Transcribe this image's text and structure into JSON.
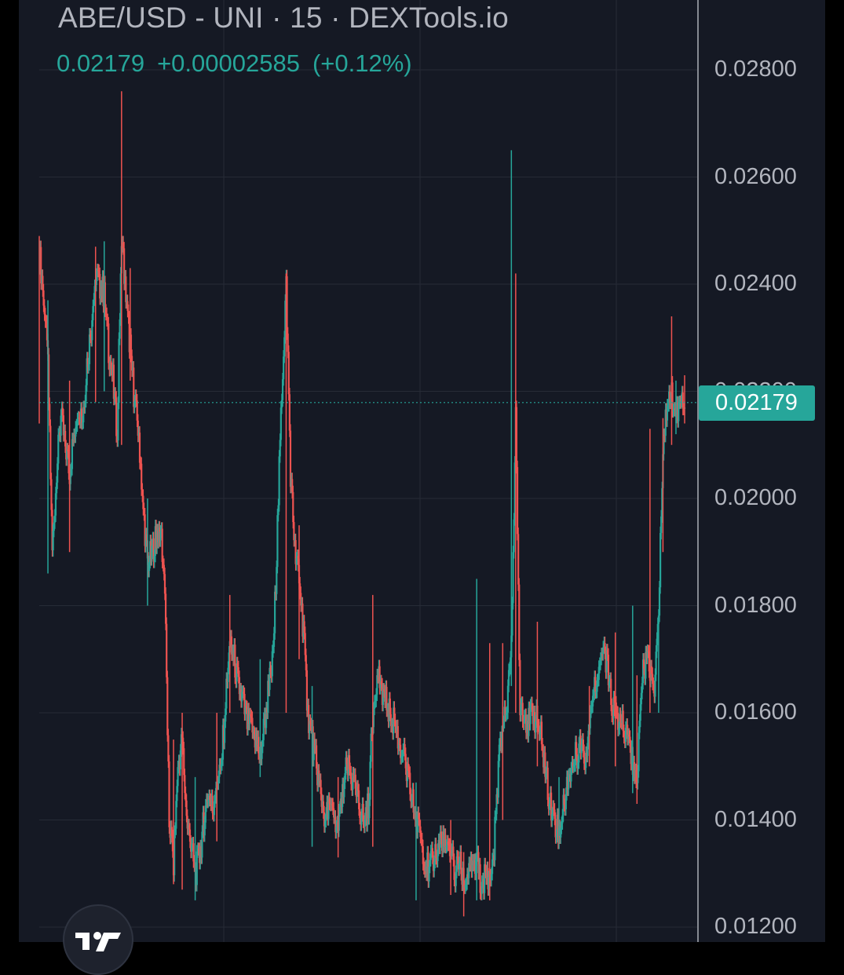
{
  "header": {
    "title": "ABE/USD - UNI · 15 · DEXTools.io",
    "last_price": "0.02179",
    "change": "+0.00002585",
    "change_pct": "(+0.12%)"
  },
  "price_tag": "0.02179",
  "colors": {
    "background": "#151924",
    "up": "#26a69a",
    "down": "#ef5350",
    "grid": "#262b36",
    "axis_text": "#b2b5be"
  },
  "logo_icon": "tradingview-logo-icon",
  "chart_data": {
    "type": "candlestick",
    "title": "ABE/USD - UNI · 15 · DEXTools.io",
    "timeframe": "15",
    "ylim": [
      0.0117,
      0.0288
    ],
    "y_ticks": [
      "0.02800",
      "0.02600",
      "0.02400",
      "0.02200",
      "0.02000",
      "0.01800",
      "0.01600",
      "0.01400",
      "0.01200"
    ],
    "y_tick_values": [
      0.028,
      0.026,
      0.024,
      0.022,
      0.02,
      0.018,
      0.016,
      0.014,
      0.012
    ],
    "current_price": 0.02179,
    "grid": true,
    "path": [
      [
        0,
        0.0246
      ],
      [
        0.5,
        0.0238
      ],
      [
        1,
        0.0225
      ],
      [
        1.5,
        0.019
      ],
      [
        2,
        0.0205
      ],
      [
        2.5,
        0.0215
      ],
      [
        3,
        0.021
      ],
      [
        3.5,
        0.0205
      ],
      [
        4,
        0.0212
      ],
      [
        4.5,
        0.0218
      ],
      [
        5,
        0.0215
      ],
      [
        5.5,
        0.0225
      ],
      [
        6,
        0.0232
      ],
      [
        6.5,
        0.0242
      ],
      [
        7,
        0.024
      ],
      [
        7.5,
        0.0238
      ],
      [
        8,
        0.0228
      ],
      [
        8.5,
        0.0222
      ],
      [
        9,
        0.0212
      ],
      [
        9.5,
        0.025
      ],
      [
        10,
        0.0237
      ],
      [
        10.5,
        0.0228
      ],
      [
        11,
        0.0218
      ],
      [
        11.5,
        0.0212
      ],
      [
        12,
        0.0198
      ],
      [
        12.5,
        0.0188
      ],
      [
        13,
        0.019
      ],
      [
        13.5,
        0.0193
      ],
      [
        14,
        0.0195
      ],
      [
        14.5,
        0.0183
      ],
      [
        15,
        0.014
      ],
      [
        15.5,
        0.0132
      ],
      [
        16,
        0.015
      ],
      [
        16.5,
        0.0155
      ],
      [
        17,
        0.014
      ],
      [
        17.5,
        0.0135
      ],
      [
        18,
        0.013
      ],
      [
        18.5,
        0.0133
      ],
      [
        19,
        0.014
      ],
      [
        19.5,
        0.0145
      ],
      [
        20,
        0.0142
      ],
      [
        20.5,
        0.0148
      ],
      [
        21,
        0.015
      ],
      [
        21.5,
        0.0162
      ],
      [
        22,
        0.0172
      ],
      [
        22.5,
        0.017
      ],
      [
        23,
        0.0165
      ],
      [
        23.5,
        0.0162
      ],
      [
        24,
        0.0158
      ],
      [
        24.5,
        0.0157
      ],
      [
        25,
        0.0155
      ],
      [
        25.5,
        0.0152
      ],
      [
        26,
        0.0158
      ],
      [
        26.5,
        0.0165
      ],
      [
        27,
        0.017
      ],
      [
        27.5,
        0.0195
      ],
      [
        28,
        0.022
      ],
      [
        28.5,
        0.024
      ],
      [
        29,
        0.0205
      ],
      [
        29.5,
        0.019
      ],
      [
        30,
        0.0185
      ],
      [
        30.5,
        0.0175
      ],
      [
        31,
        0.016
      ],
      [
        31.5,
        0.0155
      ],
      [
        32,
        0.015
      ],
      [
        32.5,
        0.0145
      ],
      [
        33,
        0.014
      ],
      [
        33.5,
        0.0142
      ],
      [
        34,
        0.014
      ],
      [
        34.5,
        0.0138
      ],
      [
        35,
        0.0145
      ],
      [
        35.5,
        0.015
      ],
      [
        36,
        0.0148
      ],
      [
        36.5,
        0.0145
      ],
      [
        37,
        0.0142
      ],
      [
        37.5,
        0.014
      ],
      [
        38,
        0.0143
      ],
      [
        38.5,
        0.016
      ],
      [
        39,
        0.0168
      ],
      [
        39.5,
        0.0165
      ],
      [
        40,
        0.0162
      ],
      [
        40.5,
        0.016
      ],
      [
        41,
        0.0158
      ],
      [
        41.5,
        0.0155
      ],
      [
        42,
        0.0152
      ],
      [
        42.5,
        0.0148
      ],
      [
        43,
        0.0144
      ],
      [
        43.5,
        0.014
      ],
      [
        44,
        0.0137
      ],
      [
        44.5,
        0.0133
      ],
      [
        45,
        0.013
      ],
      [
        45.5,
        0.0133
      ],
      [
        46,
        0.0135
      ],
      [
        46.5,
        0.0137
      ],
      [
        47,
        0.0133
      ],
      [
        47.5,
        0.0135
      ],
      [
        48,
        0.013
      ],
      [
        48.5,
        0.0132
      ],
      [
        49,
        0.0128
      ],
      [
        49.5,
        0.013
      ],
      [
        50,
        0.013
      ],
      [
        50.5,
        0.0132
      ],
      [
        51,
        0.0128
      ],
      [
        51.5,
        0.013
      ],
      [
        52,
        0.0128
      ],
      [
        52.5,
        0.0135
      ],
      [
        53,
        0.015
      ],
      [
        53.5,
        0.0158
      ],
      [
        54,
        0.0162
      ],
      [
        54.5,
        0.0175
      ],
      [
        55,
        0.0215
      ],
      [
        55.5,
        0.0162
      ],
      [
        56,
        0.016
      ],
      [
        56.5,
        0.0158
      ],
      [
        57,
        0.016
      ],
      [
        57.5,
        0.0158
      ],
      [
        58,
        0.0155
      ],
      [
        58.5,
        0.0148
      ],
      [
        59,
        0.0143
      ],
      [
        59.5,
        0.014
      ],
      [
        60,
        0.0138
      ],
      [
        60.5,
        0.0142
      ],
      [
        61,
        0.0148
      ],
      [
        61.5,
        0.015
      ],
      [
        62,
        0.0152
      ],
      [
        62.5,
        0.0155
      ],
      [
        63,
        0.0152
      ],
      [
        63.5,
        0.0158
      ],
      [
        64,
        0.0165
      ],
      [
        64.5,
        0.0168
      ],
      [
        65,
        0.0172
      ],
      [
        65.5,
        0.017
      ],
      [
        66,
        0.0162
      ],
      [
        66.5,
        0.016
      ],
      [
        67,
        0.0158
      ],
      [
        67.5,
        0.0157
      ],
      [
        68,
        0.0155
      ],
      [
        68.5,
        0.015
      ],
      [
        69,
        0.0148
      ],
      [
        69.5,
        0.0165
      ],
      [
        70,
        0.017
      ],
      [
        70.5,
        0.0168
      ],
      [
        71,
        0.0165
      ],
      [
        71.5,
        0.018
      ],
      [
        72,
        0.021
      ],
      [
        72.5,
        0.0218
      ],
      [
        73,
        0.022
      ],
      [
        73.5,
        0.0215
      ],
      [
        74,
        0.0218
      ],
      [
        74.5,
        0.0217
      ]
    ],
    "wicks": [
      [
        0,
        0.0214,
        0.0249
      ],
      [
        1,
        0.0186,
        0.0237
      ],
      [
        3.5,
        0.019,
        0.0222
      ],
      [
        6.5,
        0.0218,
        0.0247
      ],
      [
        7.5,
        0.022,
        0.0248
      ],
      [
        9.5,
        0.021,
        0.0276
      ],
      [
        10.5,
        0.0222,
        0.0243
      ],
      [
        12.5,
        0.018,
        0.02
      ],
      [
        15.5,
        0.0128,
        0.0155
      ],
      [
        16.5,
        0.0127,
        0.016
      ],
      [
        18,
        0.0125,
        0.0148
      ],
      [
        20.5,
        0.0136,
        0.016
      ],
      [
        22,
        0.016,
        0.0182
      ],
      [
        25.5,
        0.0148,
        0.017
      ],
      [
        28.5,
        0.016,
        0.0242
      ],
      [
        30,
        0.017,
        0.0195
      ],
      [
        31.5,
        0.0135,
        0.0165
      ],
      [
        34.5,
        0.0133,
        0.0148
      ],
      [
        38.5,
        0.0135,
        0.0182
      ],
      [
        43.5,
        0.0125,
        0.0147
      ],
      [
        47.5,
        0.0126,
        0.014
      ],
      [
        49,
        0.0122,
        0.0134
      ],
      [
        50.5,
        0.0125,
        0.0185
      ],
      [
        52,
        0.0125,
        0.0173
      ],
      [
        53.5,
        0.014,
        0.0173
      ],
      [
        54.5,
        0.0165,
        0.0265
      ],
      [
        55,
        0.016,
        0.0242
      ],
      [
        57.5,
        0.015,
        0.0177
      ],
      [
        60,
        0.0137,
        0.0148
      ],
      [
        63.5,
        0.015,
        0.0165
      ],
      [
        66.5,
        0.015,
        0.0175
      ],
      [
        68.5,
        0.0145,
        0.018
      ],
      [
        69,
        0.0143,
        0.0167
      ],
      [
        70.5,
        0.016,
        0.0213
      ],
      [
        71.5,
        0.016,
        0.0178
      ],
      [
        72,
        0.019,
        0.0215
      ],
      [
        73,
        0.021,
        0.0234
      ],
      [
        73.5,
        0.0212,
        0.0222
      ],
      [
        74.5,
        0.0214,
        0.0223
      ]
    ]
  }
}
